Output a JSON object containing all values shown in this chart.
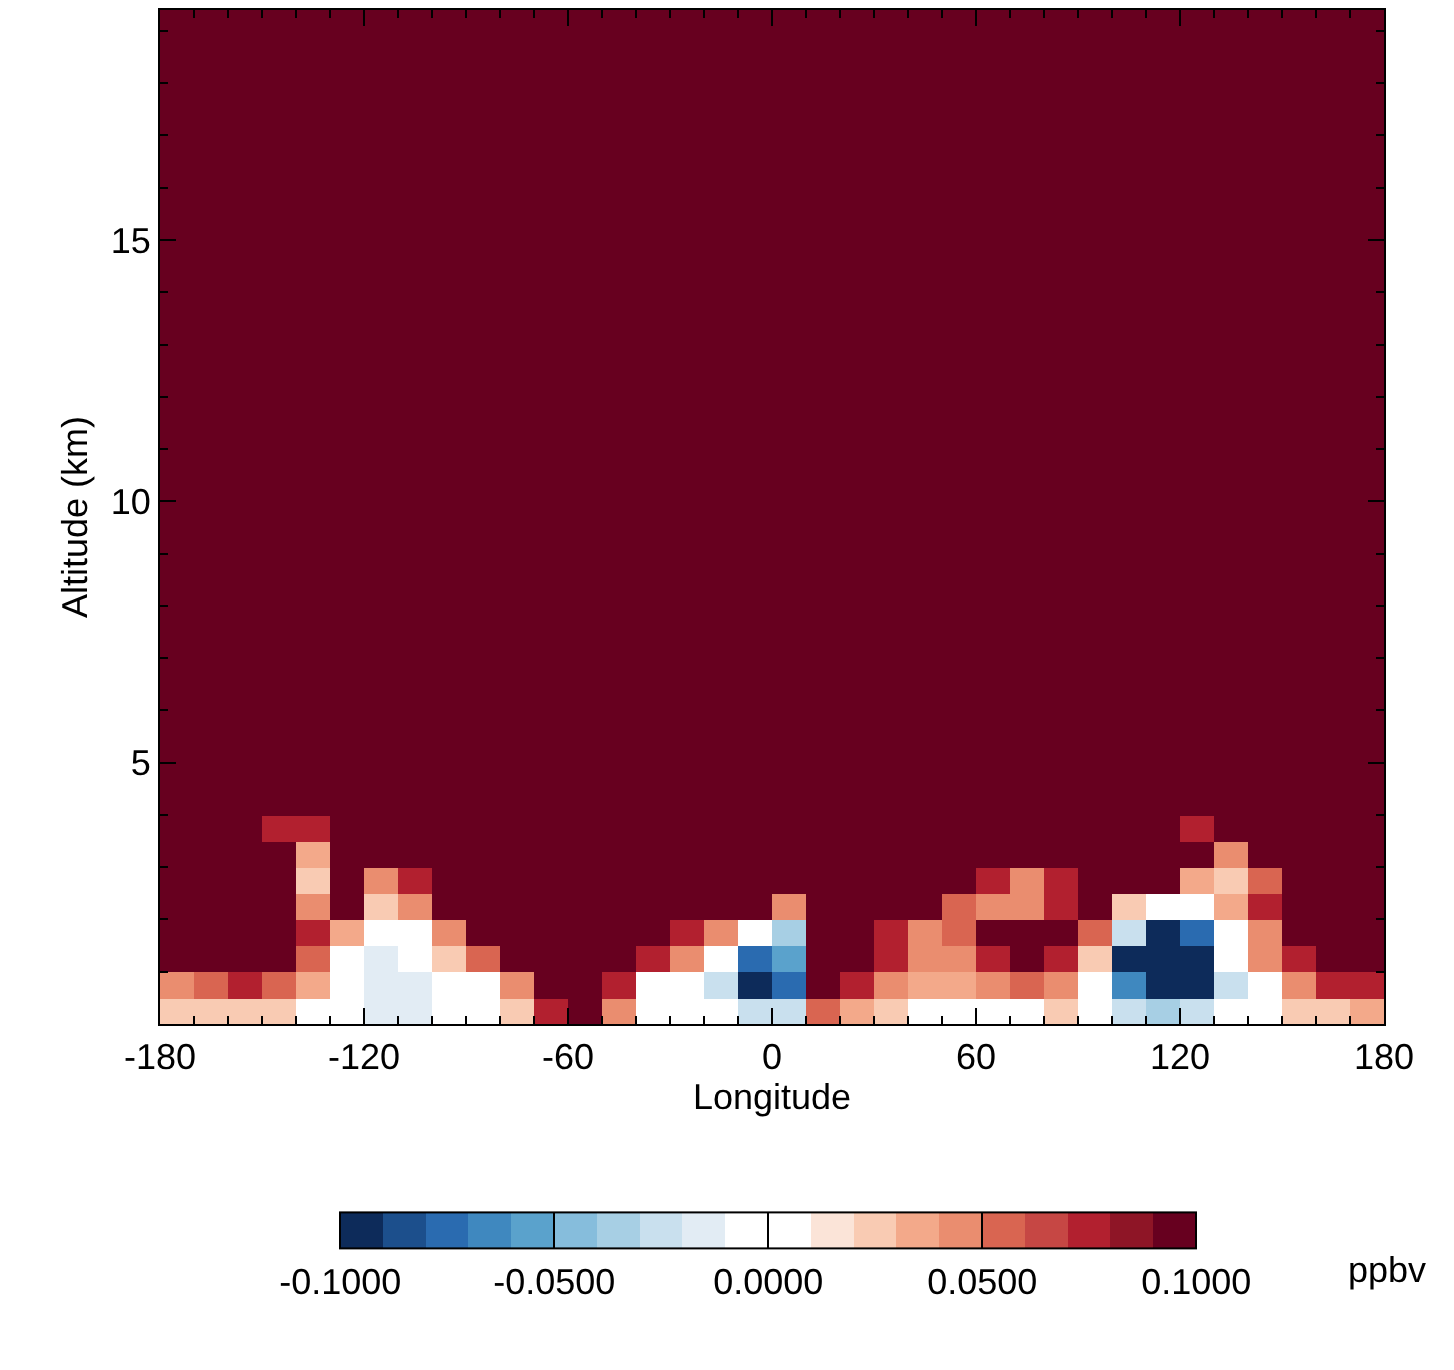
{
  "chart_data": {
    "type": "heatmap",
    "xlabel": "Longitude",
    "ylabel": "Altitude (km)",
    "clabel": "ppbv",
    "x": [
      -175,
      -165,
      -155,
      -145,
      -135,
      -125,
      -115,
      -105,
      -95,
      -85,
      -75,
      -65,
      -55,
      -45,
      -35,
      -25,
      -15,
      -5,
      5,
      15,
      25,
      35,
      45,
      55,
      65,
      75,
      85,
      95,
      105,
      115,
      125,
      135,
      145,
      155,
      165,
      175
    ],
    "y": [
      19.25,
      18.75,
      18.25,
      17.75,
      17.25,
      16.75,
      16.25,
      15.75,
      15.25,
      14.75,
      14.25,
      13.75,
      13.25,
      12.75,
      12.25,
      11.75,
      11.25,
      10.75,
      10.25,
      9.75,
      9.25,
      8.75,
      8.25,
      7.75,
      7.25,
      6.75,
      6.25,
      5.75,
      5.25,
      4.75,
      4.25,
      3.75,
      3.25,
      2.75,
      2.25,
      1.75,
      1.25,
      0.75,
      0.25
    ],
    "xlim": [
      -180,
      180
    ],
    "xticks": [
      -180,
      -120,
      -60,
      0,
      60,
      120,
      180
    ],
    "ylim": [
      0,
      19.4
    ],
    "yticks": [
      5,
      10,
      15
    ],
    "clim": [
      -0.1,
      0.1
    ],
    "cticks": [
      {
        "value": -0.1,
        "label": "-0.1000"
      },
      {
        "value": -0.05,
        "label": "-0.0500"
      },
      {
        "value": 0,
        "label": "0.0000"
      },
      {
        "value": 0.05,
        "label": "0.0500"
      },
      {
        "value": 0.1,
        "label": "0.1000"
      }
    ],
    "colors": [
      "#0d2b5a",
      "#1c4f8c",
      "#2a6bb0",
      "#3f88bf",
      "#5aa2cc",
      "#86bddc",
      "#a7cfe4",
      "#c9e0ee",
      "#e2ecf4",
      "#ffffff",
      "#ffffff",
      "#fbe4d8",
      "#f9cbb3",
      "#f3a98a",
      "#ea8d6f",
      "#d96551",
      "#c64744",
      "#b2202f",
      "#8e1526",
      "#67001f"
    ],
    "cells": [
      [
        0.1,
        0.1,
        0.1,
        0.1,
        0.1,
        0.1,
        0.1,
        0.1,
        0.1,
        0.1,
        0.1,
        0.1,
        0.1,
        0.1,
        0.1,
        0.1,
        0.1,
        0.1,
        0.1,
        0.1,
        0.1,
        0.1,
        0.1,
        0.1,
        0.1,
        0.1,
        0.1,
        0.1,
        0.1,
        0.1,
        0.1,
        0.1,
        0.1,
        0.1,
        0.1,
        0.1
      ],
      [
        0.1,
        0.1,
        0.1,
        0.1,
        0.1,
        0.1,
        0.1,
        0.1,
        0.1,
        0.1,
        0.1,
        0.1,
        0.1,
        0.1,
        0.1,
        0.1,
        0.1,
        0.1,
        0.1,
        0.1,
        0.1,
        0.1,
        0.1,
        0.1,
        0.1,
        0.1,
        0.1,
        0.1,
        0.1,
        0.1,
        0.1,
        0.1,
        0.1,
        0.1,
        0.1,
        0.1
      ],
      [
        0.1,
        0.1,
        0.1,
        0.1,
        0.1,
        0.1,
        0.1,
        0.1,
        0.1,
        0.1,
        0.1,
        0.1,
        0.1,
        0.1,
        0.1,
        0.1,
        0.1,
        0.1,
        0.1,
        0.1,
        0.1,
        0.1,
        0.1,
        0.1,
        0.1,
        0.1,
        0.1,
        0.1,
        0.1,
        0.1,
        0.1,
        0.1,
        0.1,
        0.1,
        0.1,
        0.1
      ],
      [
        0.1,
        0.1,
        0.1,
        0.1,
        0.1,
        0.1,
        0.1,
        0.1,
        0.1,
        0.1,
        0.1,
        0.1,
        0.1,
        0.1,
        0.1,
        0.1,
        0.1,
        0.1,
        0.1,
        0.1,
        0.1,
        0.1,
        0.1,
        0.1,
        0.1,
        0.1,
        0.1,
        0.1,
        0.1,
        0.1,
        0.1,
        0.1,
        0.1,
        0.1,
        0.1,
        0.1
      ],
      [
        0.1,
        0.1,
        0.1,
        0.1,
        0.1,
        0.1,
        0.1,
        0.1,
        0.1,
        0.1,
        0.1,
        0.1,
        0.1,
        0.1,
        0.1,
        0.1,
        0.1,
        0.1,
        0.1,
        0.1,
        0.1,
        0.1,
        0.1,
        0.1,
        0.1,
        0.1,
        0.1,
        0.1,
        0.1,
        0.1,
        0.1,
        0.1,
        0.1,
        0.1,
        0.1,
        0.1
      ],
      [
        0.1,
        0.1,
        0.1,
        0.1,
        0.1,
        0.1,
        0.1,
        0.1,
        0.1,
        0.1,
        0.1,
        0.1,
        0.1,
        0.1,
        0.1,
        0.1,
        0.1,
        0.1,
        0.1,
        0.1,
        0.1,
        0.1,
        0.1,
        0.1,
        0.1,
        0.1,
        0.1,
        0.1,
        0.1,
        0.1,
        0.1,
        0.1,
        0.1,
        0.1,
        0.1,
        0.1
      ],
      [
        0.1,
        0.1,
        0.1,
        0.1,
        0.1,
        0.1,
        0.1,
        0.1,
        0.1,
        0.1,
        0.1,
        0.1,
        0.1,
        0.1,
        0.1,
        0.1,
        0.1,
        0.1,
        0.1,
        0.1,
        0.1,
        0.1,
        0.1,
        0.1,
        0.1,
        0.1,
        0.1,
        0.1,
        0.1,
        0.1,
        0.1,
        0.1,
        0.1,
        0.1,
        0.1,
        0.1
      ],
      [
        0.1,
        0.1,
        0.1,
        0.1,
        0.1,
        0.1,
        0.1,
        0.1,
        0.1,
        0.1,
        0.1,
        0.1,
        0.1,
        0.1,
        0.1,
        0.1,
        0.1,
        0.1,
        0.1,
        0.1,
        0.1,
        0.1,
        0.1,
        0.1,
        0.1,
        0.1,
        0.1,
        0.1,
        0.1,
        0.1,
        0.1,
        0.1,
        0.1,
        0.1,
        0.1,
        0.1
      ],
      [
        0.1,
        0.1,
        0.1,
        0.1,
        0.1,
        0.1,
        0.1,
        0.1,
        0.1,
        0.1,
        0.1,
        0.1,
        0.1,
        0.1,
        0.1,
        0.1,
        0.1,
        0.1,
        0.1,
        0.1,
        0.1,
        0.1,
        0.1,
        0.1,
        0.1,
        0.1,
        0.1,
        0.1,
        0.1,
        0.1,
        0.1,
        0.1,
        0.1,
        0.1,
        0.1,
        0.1
      ],
      [
        0.1,
        0.1,
        0.1,
        0.1,
        0.1,
        0.1,
        0.1,
        0.1,
        0.1,
        0.1,
        0.1,
        0.1,
        0.1,
        0.1,
        0.1,
        0.1,
        0.1,
        0.1,
        0.1,
        0.1,
        0.1,
        0.1,
        0.1,
        0.1,
        0.1,
        0.1,
        0.1,
        0.1,
        0.1,
        0.1,
        0.1,
        0.1,
        0.1,
        0.1,
        0.1,
        0.1
      ],
      [
        0.1,
        0.1,
        0.1,
        0.1,
        0.1,
        0.1,
        0.1,
        0.1,
        0.1,
        0.1,
        0.1,
        0.1,
        0.1,
        0.1,
        0.1,
        0.1,
        0.1,
        0.1,
        0.1,
        0.1,
        0.1,
        0.1,
        0.1,
        0.1,
        0.1,
        0.1,
        0.1,
        0.1,
        0.1,
        0.1,
        0.1,
        0.1,
        0.1,
        0.1,
        0.1,
        0.1
      ],
      [
        0.1,
        0.1,
        0.1,
        0.1,
        0.1,
        0.1,
        0.1,
        0.1,
        0.1,
        0.1,
        0.1,
        0.1,
        0.1,
        0.1,
        0.1,
        0.1,
        0.1,
        0.1,
        0.1,
        0.1,
        0.1,
        0.1,
        0.1,
        0.1,
        0.1,
        0.1,
        0.1,
        0.1,
        0.1,
        0.1,
        0.1,
        0.1,
        0.1,
        0.1,
        0.1,
        0.1
      ],
      [
        0.1,
        0.1,
        0.1,
        0.1,
        0.1,
        0.1,
        0.1,
        0.1,
        0.1,
        0.1,
        0.1,
        0.1,
        0.1,
        0.1,
        0.1,
        0.1,
        0.1,
        0.1,
        0.1,
        0.1,
        0.1,
        0.1,
        0.1,
        0.1,
        0.1,
        0.1,
        0.1,
        0.1,
        0.1,
        0.1,
        0.1,
        0.1,
        0.1,
        0.1,
        0.1,
        0.1
      ],
      [
        0.1,
        0.1,
        0.1,
        0.1,
        0.1,
        0.1,
        0.1,
        0.1,
        0.1,
        0.1,
        0.1,
        0.1,
        0.1,
        0.1,
        0.1,
        0.1,
        0.1,
        0.1,
        0.1,
        0.1,
        0.1,
        0.1,
        0.1,
        0.1,
        0.1,
        0.1,
        0.1,
        0.1,
        0.1,
        0.1,
        0.1,
        0.1,
        0.1,
        0.1,
        0.1,
        0.1
      ],
      [
        0.1,
        0.1,
        0.1,
        0.1,
        0.1,
        0.1,
        0.1,
        0.1,
        0.1,
        0.1,
        0.1,
        0.1,
        0.1,
        0.1,
        0.1,
        0.1,
        0.1,
        0.1,
        0.1,
        0.1,
        0.1,
        0.1,
        0.1,
        0.1,
        0.1,
        0.1,
        0.1,
        0.1,
        0.1,
        0.1,
        0.1,
        0.1,
        0.1,
        0.1,
        0.1,
        0.1
      ],
      [
        0.1,
        0.1,
        0.1,
        0.1,
        0.1,
        0.1,
        0.1,
        0.1,
        0.1,
        0.1,
        0.1,
        0.1,
        0.1,
        0.1,
        0.1,
        0.1,
        0.1,
        0.1,
        0.1,
        0.1,
        0.1,
        0.1,
        0.1,
        0.1,
        0.1,
        0.1,
        0.1,
        0.1,
        0.1,
        0.1,
        0.1,
        0.1,
        0.1,
        0.1,
        0.1,
        0.1
      ],
      [
        0.1,
        0.1,
        0.1,
        0.1,
        0.1,
        0.1,
        0.1,
        0.1,
        0.1,
        0.1,
        0.1,
        0.1,
        0.1,
        0.1,
        0.1,
        0.1,
        0.1,
        0.1,
        0.1,
        0.1,
        0.1,
        0.1,
        0.1,
        0.1,
        0.1,
        0.1,
        0.1,
        0.1,
        0.1,
        0.1,
        0.1,
        0.1,
        0.1,
        0.1,
        0.1,
        0.1
      ],
      [
        0.1,
        0.1,
        0.1,
        0.1,
        0.1,
        0.1,
        0.1,
        0.1,
        0.1,
        0.1,
        0.1,
        0.1,
        0.1,
        0.1,
        0.1,
        0.1,
        0.1,
        0.1,
        0.1,
        0.1,
        0.1,
        0.1,
        0.1,
        0.1,
        0.1,
        0.1,
        0.1,
        0.1,
        0.1,
        0.1,
        0.1,
        0.1,
        0.1,
        0.1,
        0.1,
        0.1
      ],
      [
        0.1,
        0.1,
        0.1,
        0.1,
        0.1,
        0.1,
        0.1,
        0.1,
        0.1,
        0.1,
        0.1,
        0.1,
        0.1,
        0.1,
        0.1,
        0.1,
        0.1,
        0.1,
        0.1,
        0.1,
        0.1,
        0.1,
        0.1,
        0.1,
        0.1,
        0.1,
        0.1,
        0.1,
        0.1,
        0.1,
        0.1,
        0.1,
        0.1,
        0.1,
        0.1,
        0.1
      ],
      [
        0.1,
        0.1,
        0.1,
        0.1,
        0.1,
        0.1,
        0.1,
        0.1,
        0.1,
        0.1,
        0.1,
        0.1,
        0.1,
        0.1,
        0.1,
        0.1,
        0.1,
        0.1,
        0.1,
        0.1,
        0.1,
        0.1,
        0.1,
        0.1,
        0.1,
        0.1,
        0.1,
        0.1,
        0.1,
        0.1,
        0.1,
        0.1,
        0.1,
        0.1,
        0.1,
        0.1
      ],
      [
        0.1,
        0.1,
        0.1,
        0.1,
        0.1,
        0.1,
        0.1,
        0.1,
        0.1,
        0.1,
        0.1,
        0.1,
        0.1,
        0.1,
        0.1,
        0.1,
        0.1,
        0.1,
        0.1,
        0.1,
        0.1,
        0.1,
        0.1,
        0.1,
        0.1,
        0.1,
        0.1,
        0.1,
        0.1,
        0.1,
        0.1,
        0.1,
        0.1,
        0.1,
        0.1,
        0.1
      ],
      [
        0.1,
        0.1,
        0.1,
        0.1,
        0.1,
        0.1,
        0.1,
        0.1,
        0.1,
        0.1,
        0.1,
        0.1,
        0.1,
        0.1,
        0.1,
        0.1,
        0.1,
        0.1,
        0.1,
        0.1,
        0.1,
        0.1,
        0.1,
        0.1,
        0.1,
        0.1,
        0.1,
        0.1,
        0.1,
        0.1,
        0.1,
        0.1,
        0.1,
        0.1,
        0.1,
        0.1
      ],
      [
        0.1,
        0.1,
        0.1,
        0.1,
        0.1,
        0.1,
        0.1,
        0.1,
        0.1,
        0.1,
        0.1,
        0.1,
        0.1,
        0.1,
        0.1,
        0.1,
        0.1,
        0.1,
        0.1,
        0.1,
        0.1,
        0.1,
        0.1,
        0.1,
        0.1,
        0.1,
        0.1,
        0.1,
        0.1,
        0.1,
        0.1,
        0.1,
        0.1,
        0.1,
        0.1,
        0.1
      ],
      [
        0.1,
        0.1,
        0.1,
        0.1,
        0.1,
        0.1,
        0.1,
        0.1,
        0.1,
        0.1,
        0.1,
        0.1,
        0.1,
        0.1,
        0.1,
        0.1,
        0.1,
        0.1,
        0.1,
        0.1,
        0.1,
        0.1,
        0.1,
        0.1,
        0.1,
        0.1,
        0.1,
        0.1,
        0.1,
        0.1,
        0.1,
        0.1,
        0.1,
        0.1,
        0.1,
        0.1
      ],
      [
        0.1,
        0.1,
        0.1,
        0.1,
        0.1,
        0.1,
        0.1,
        0.1,
        0.1,
        0.1,
        0.1,
        0.1,
        0.1,
        0.1,
        0.1,
        0.1,
        0.1,
        0.1,
        0.1,
        0.1,
        0.1,
        0.1,
        0.1,
        0.1,
        0.1,
        0.1,
        0.1,
        0.1,
        0.1,
        0.1,
        0.1,
        0.1,
        0.1,
        0.1,
        0.1,
        0.1
      ],
      [
        0.1,
        0.1,
        0.1,
        0.1,
        0.1,
        0.1,
        0.1,
        0.1,
        0.1,
        0.1,
        0.1,
        0.1,
        0.1,
        0.1,
        0.1,
        0.1,
        0.1,
        0.1,
        0.1,
        0.1,
        0.1,
        0.1,
        0.1,
        0.1,
        0.1,
        0.1,
        0.1,
        0.1,
        0.1,
        0.1,
        0.1,
        0.1,
        0.1,
        0.1,
        0.1,
        0.1
      ],
      [
        0.1,
        0.1,
        0.1,
        0.1,
        0.1,
        0.1,
        0.1,
        0.1,
        0.1,
        0.1,
        0.1,
        0.1,
        0.1,
        0.1,
        0.1,
        0.1,
        0.1,
        0.1,
        0.1,
        0.1,
        0.1,
        0.1,
        0.1,
        0.1,
        0.1,
        0.1,
        0.1,
        0.1,
        0.1,
        0.1,
        0.1,
        0.1,
        0.1,
        0.1,
        0.1,
        0.1
      ],
      [
        0.1,
        0.1,
        0.1,
        0.1,
        0.1,
        0.1,
        0.1,
        0.1,
        0.1,
        0.1,
        0.1,
        0.1,
        0.1,
        0.1,
        0.1,
        0.1,
        0.1,
        0.1,
        0.1,
        0.1,
        0.1,
        0.1,
        0.1,
        0.1,
        0.1,
        0.1,
        0.1,
        0.1,
        0.1,
        0.1,
        0.1,
        0.1,
        0.1,
        0.1,
        0.1,
        0.1
      ],
      [
        0.1,
        0.1,
        0.1,
        0.1,
        0.1,
        0.1,
        0.1,
        0.1,
        0.1,
        0.1,
        0.1,
        0.1,
        0.1,
        0.1,
        0.1,
        0.1,
        0.1,
        0.1,
        0.1,
        0.1,
        0.1,
        0.1,
        0.1,
        0.1,
        0.1,
        0.1,
        0.1,
        0.1,
        0.1,
        0.1,
        0.1,
        0.1,
        0.1,
        0.1,
        0.1,
        0.1
      ],
      [
        0.1,
        0.1,
        0.1,
        0.1,
        0.1,
        0.1,
        0.1,
        0.1,
        0.1,
        0.1,
        0.1,
        0.1,
        0.1,
        0.1,
        0.1,
        0.1,
        0.1,
        0.1,
        0.1,
        0.1,
        0.1,
        0.1,
        0.1,
        0.1,
        0.1,
        0.1,
        0.1,
        0.1,
        0.1,
        0.1,
        0.1,
        0.1,
        0.1,
        0.1,
        0.1,
        0.1
      ],
      [
        0.1,
        0.1,
        0.1,
        0.1,
        0.1,
        0.1,
        0.1,
        0.1,
        0.1,
        0.1,
        0.1,
        0.1,
        0.1,
        0.1,
        0.1,
        0.1,
        0.1,
        0.1,
        0.1,
        0.1,
        0.1,
        0.1,
        0.1,
        0.1,
        0.1,
        0.1,
        0.1,
        0.1,
        0.1,
        0.1,
        0.1,
        0.1,
        0.1,
        0.1,
        0.1,
        0.1
      ],
      [
        0.1,
        0.1,
        0.1,
        0.08,
        0.07,
        0.1,
        0.1,
        0.1,
        0.1,
        0.1,
        0.1,
        0.1,
        0.1,
        0.1,
        0.1,
        0.1,
        0.1,
        0.1,
        0.1,
        0.1,
        0.1,
        0.1,
        0.1,
        0.1,
        0.1,
        0.1,
        0.1,
        0.1,
        0.1,
        0.1,
        0.08,
        0.1,
        0.1,
        0.1,
        0.1,
        0.1
      ],
      [
        0.1,
        0.1,
        0.1,
        0.1,
        0.03,
        0.1,
        0.1,
        0.1,
        0.1,
        0.1,
        0.1,
        0.1,
        0.1,
        0.1,
        0.1,
        0.1,
        0.1,
        0.1,
        0.1,
        0.1,
        0.1,
        0.1,
        0.1,
        0.1,
        0.1,
        0.1,
        0.1,
        0.1,
        0.1,
        0.1,
        0.1,
        0.05,
        0.1,
        0.1,
        0.1,
        0.1
      ],
      [
        0.1,
        0.1,
        0.1,
        0.1,
        0.02,
        0.1,
        0.04,
        0.08,
        0.1,
        0.1,
        0.1,
        0.1,
        0.1,
        0.1,
        0.1,
        0.1,
        0.1,
        0.1,
        0.1,
        0.1,
        0.1,
        0.1,
        0.1,
        0.1,
        0.07,
        0.05,
        0.08,
        0.1,
        0.1,
        0.1,
        0.03,
        0.02,
        0.06,
        0.1,
        0.1,
        0.1
      ],
      [
        0.1,
        0.1,
        0.1,
        0.1,
        0.04,
        0.09,
        0.02,
        0.05,
        0.1,
        0.1,
        0.1,
        0.1,
        0.1,
        0.1,
        0.1,
        0.1,
        0.1,
        0.1,
        0.04,
        0.1,
        0.1,
        0.1,
        0.1,
        0.06,
        0.05,
        0.05,
        0.07,
        0.1,
        0.02,
        0.0,
        0.01,
        0.03,
        0.07,
        0.1,
        0.1,
        0.1
      ],
      [
        0.1,
        0.1,
        0.1,
        0.1,
        0.08,
        0.03,
        0.0,
        0.01,
        0.05,
        0.1,
        0.1,
        0.1,
        0.1,
        0.1,
        0.1,
        0.08,
        0.05,
        0.0,
        -0.04,
        0.09,
        0.1,
        0.08,
        0.05,
        0.06,
        0.09,
        0.1,
        0.09,
        0.06,
        -0.02,
        -0.1,
        -0.08,
        0.01,
        0.05,
        0.09,
        0.1,
        0.1
      ],
      [
        0.1,
        0.09,
        0.09,
        0.09,
        0.06,
        0.01,
        -0.01,
        0.0,
        0.02,
        0.06,
        0.1,
        0.1,
        0.1,
        0.1,
        0.08,
        0.04,
        0.01,
        -0.08,
        -0.06,
        0.1,
        0.09,
        0.07,
        0.04,
        0.05,
        0.08,
        0.09,
        0.08,
        0.02,
        -0.1,
        -0.1,
        -0.1,
        0.0,
        0.04,
        0.08,
        0.1,
        0.1
      ],
      [
        0.05,
        0.06,
        0.07,
        0.06,
        0.03,
        0.0,
        -0.01,
        -0.01,
        0.0,
        0.01,
        0.04,
        0.1,
        0.1,
        0.08,
        0.01,
        0.01,
        -0.02,
        -0.1,
        -0.08,
        0.1,
        0.08,
        0.05,
        0.03,
        0.03,
        0.05,
        0.06,
        0.05,
        0.01,
        -0.07,
        -0.1,
        -0.1,
        -0.02,
        0.01,
        0.04,
        0.07,
        0.08
      ],
      [
        0.02,
        0.02,
        0.02,
        0.02,
        0.01,
        0.0,
        -0.01,
        -0.01,
        0.0,
        0.01,
        0.02,
        0.08,
        0.1,
        0.04,
        0.0,
        0.0,
        0.0,
        -0.03,
        -0.02,
        0.06,
        0.03,
        0.02,
        0.01,
        0.0,
        0.0,
        0.01,
        0.02,
        0.0,
        -0.03,
        -0.04,
        -0.02,
        0.0,
        0.01,
        0.02,
        0.02,
        0.03
      ]
    ]
  }
}
